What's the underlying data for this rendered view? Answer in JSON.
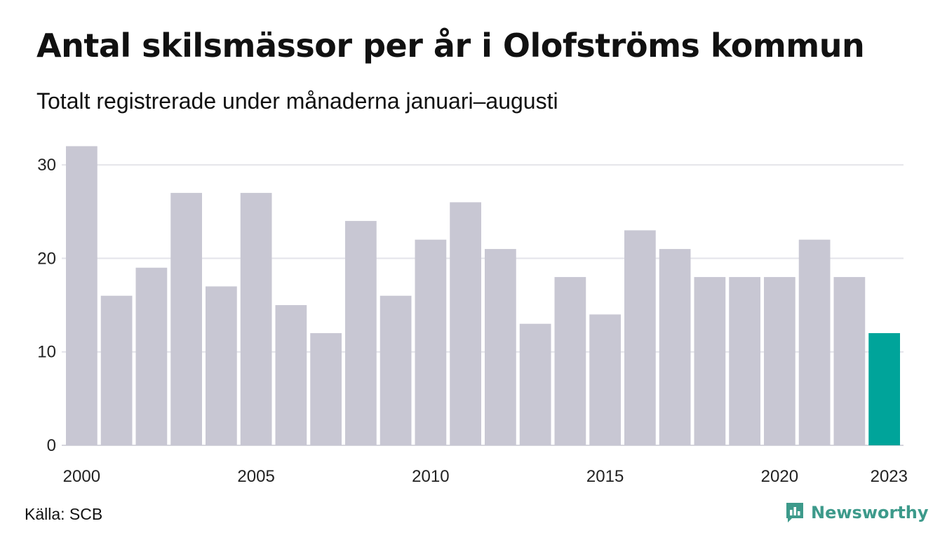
{
  "header": {
    "title": "Antal skilsmässor per år i Olofströms kommun",
    "subtitle": "Totalt registrerade under månaderna januari–augusti"
  },
  "footer": {
    "source": "Källa: SCB",
    "brand": "Newsworthy",
    "brand_icon": "chart-bubble-icon",
    "brand_color": "#3d9a8b"
  },
  "chart_data": {
    "type": "bar",
    "title": "Antal skilsmässor per år i Olofströms kommun",
    "subtitle": "Totalt registrerade under månaderna januari–augusti",
    "xlabel": "",
    "ylabel": "",
    "categories": [
      "2000",
      "2001",
      "2002",
      "2003",
      "2004",
      "2005",
      "2006",
      "2007",
      "2008",
      "2009",
      "2010",
      "2011",
      "2012",
      "2013",
      "2014",
      "2015",
      "2016",
      "2017",
      "2018",
      "2019",
      "2020",
      "2021",
      "2022",
      "2023"
    ],
    "values": [
      32,
      16,
      19,
      27,
      17,
      27,
      15,
      12,
      24,
      16,
      22,
      26,
      21,
      13,
      18,
      14,
      23,
      21,
      18,
      18,
      18,
      22,
      18,
      12
    ],
    "x_tick_labels": [
      "2000",
      "2005",
      "2010",
      "2015",
      "2020",
      "2023"
    ],
    "y_ticks": [
      0,
      10,
      20,
      30
    ],
    "ylim": [
      0,
      32
    ],
    "grid": true,
    "legend": "none",
    "bar_color": "#c8c7d3",
    "highlight_color": "#00a49a",
    "highlight_category": "2023",
    "gridline_color": "#e4e4ea"
  }
}
